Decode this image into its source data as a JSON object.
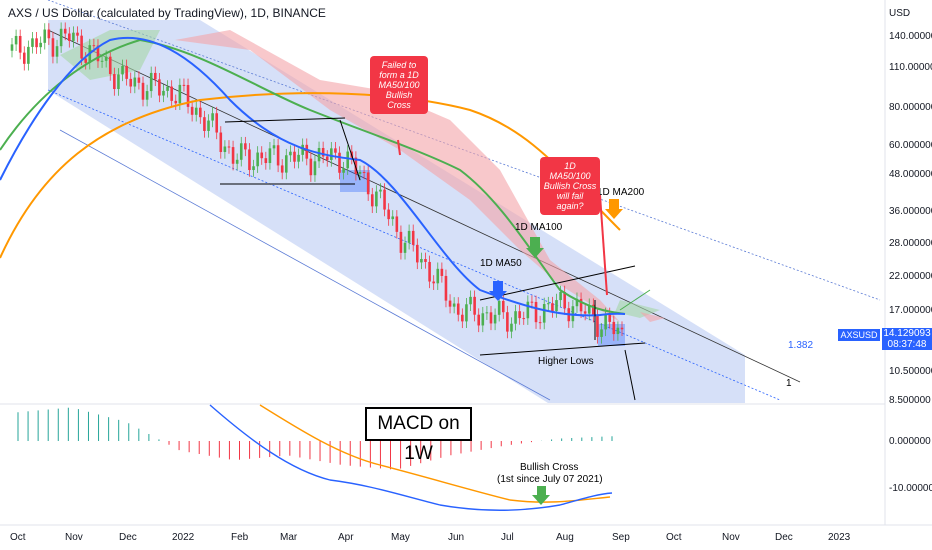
{
  "header": {
    "title": "AXS / US Dollar (calculated by TradingView), 1D, BINANCE"
  },
  "price_axis": {
    "currency": "USD",
    "ticks": [
      "140.000000",
      "110.000000",
      "80.000000",
      "60.000000",
      "48.000000",
      "36.000000",
      "28.000000",
      "22.000000",
      "17.000000",
      "13.000000",
      "10.500000",
      "8.500000"
    ],
    "last_price_symbol": "AXSUSD",
    "last_price": "14.129093",
    "countdown": "08:37:48"
  },
  "macd_axis": {
    "ticks": [
      "0.000000",
      "-10.000000"
    ]
  },
  "time_axis": {
    "ticks": [
      "Oct",
      "Nov",
      "Dec",
      "2022",
      "Feb",
      "Mar",
      "Apr",
      "May",
      "Jun",
      "Jul",
      "Aug",
      "Sep",
      "Oct",
      "Nov",
      "Dec",
      "2023"
    ]
  },
  "annotations": {
    "failed_cross": "Failed to form a 1D MA50/100 Bullish Cross",
    "fail_again": "1D MA50/100 Bullish Cross will fail again?",
    "ma50": "1D MA50",
    "ma100": "1D MA100",
    "ma200": "1D MA200",
    "higher_lows": "Higher Lows",
    "fib_1382": "1.382",
    "fib_1": "1",
    "macd_title": "MACD on 1W",
    "bullish_cross_line1": "Bullish Cross",
    "bullish_cross_line2": "(1st since July 07 2021)"
  },
  "colors": {
    "ma50": "#2962ff",
    "ma100": "#4caf50",
    "ma200": "#ff9800",
    "candle_up": "#4caf50",
    "candle_down": "#f23645",
    "channel_fill": "#c5d3f5",
    "cloud_red": "#f4a4a8",
    "cloud_green": "#a5d6a7",
    "annotation_red": "#f23645",
    "price_label": "#2962ff"
  },
  "chart_data": {
    "type": "line",
    "log_scale": true,
    "x": [
      "Oct",
      "Nov",
      "Dec",
      "2022",
      "Feb",
      "Mar",
      "Apr",
      "May",
      "Jun",
      "Jul",
      "Aug",
      "Sep"
    ],
    "series": [
      {
        "name": "AXSUSD",
        "values": [
          125,
          140,
          100,
          90,
          55,
          55,
          55,
          30,
          17,
          16,
          18,
          14
        ]
      },
      {
        "name": "1D MA50",
        "values": [
          80,
          115,
          120,
          100,
          65,
          55,
          55,
          45,
          22,
          17,
          16,
          16
        ]
      },
      {
        "name": "1D MA100",
        "values": [
          60,
          90,
          110,
          110,
          80,
          65,
          60,
          52,
          38,
          26,
          19,
          17
        ]
      },
      {
        "name": "1D MA200",
        "values": [
          28,
          60,
          80,
          90,
          90,
          85,
          82,
          78,
          68,
          55,
          40,
          32
        ]
      }
    ],
    "macd": {
      "histogram": [
        12,
        14,
        8,
        -4,
        -8,
        -6,
        -10,
        -12,
        -6,
        -2,
        1,
        2
      ],
      "macd_line": [
        15,
        10,
        5,
        -2,
        -6,
        -7,
        -10,
        -12,
        -13,
        -12,
        -9,
        -7
      ],
      "signal_line": [
        20,
        18,
        14,
        8,
        2,
        -3,
        -6,
        -9,
        -11,
        -12,
        -11,
        -9
      ]
    },
    "price_ticks": [
      140,
      110,
      80,
      60,
      48,
      36,
      28,
      22,
      17,
      13,
      10.5,
      8.5
    ],
    "last_price": 14.129093
  }
}
